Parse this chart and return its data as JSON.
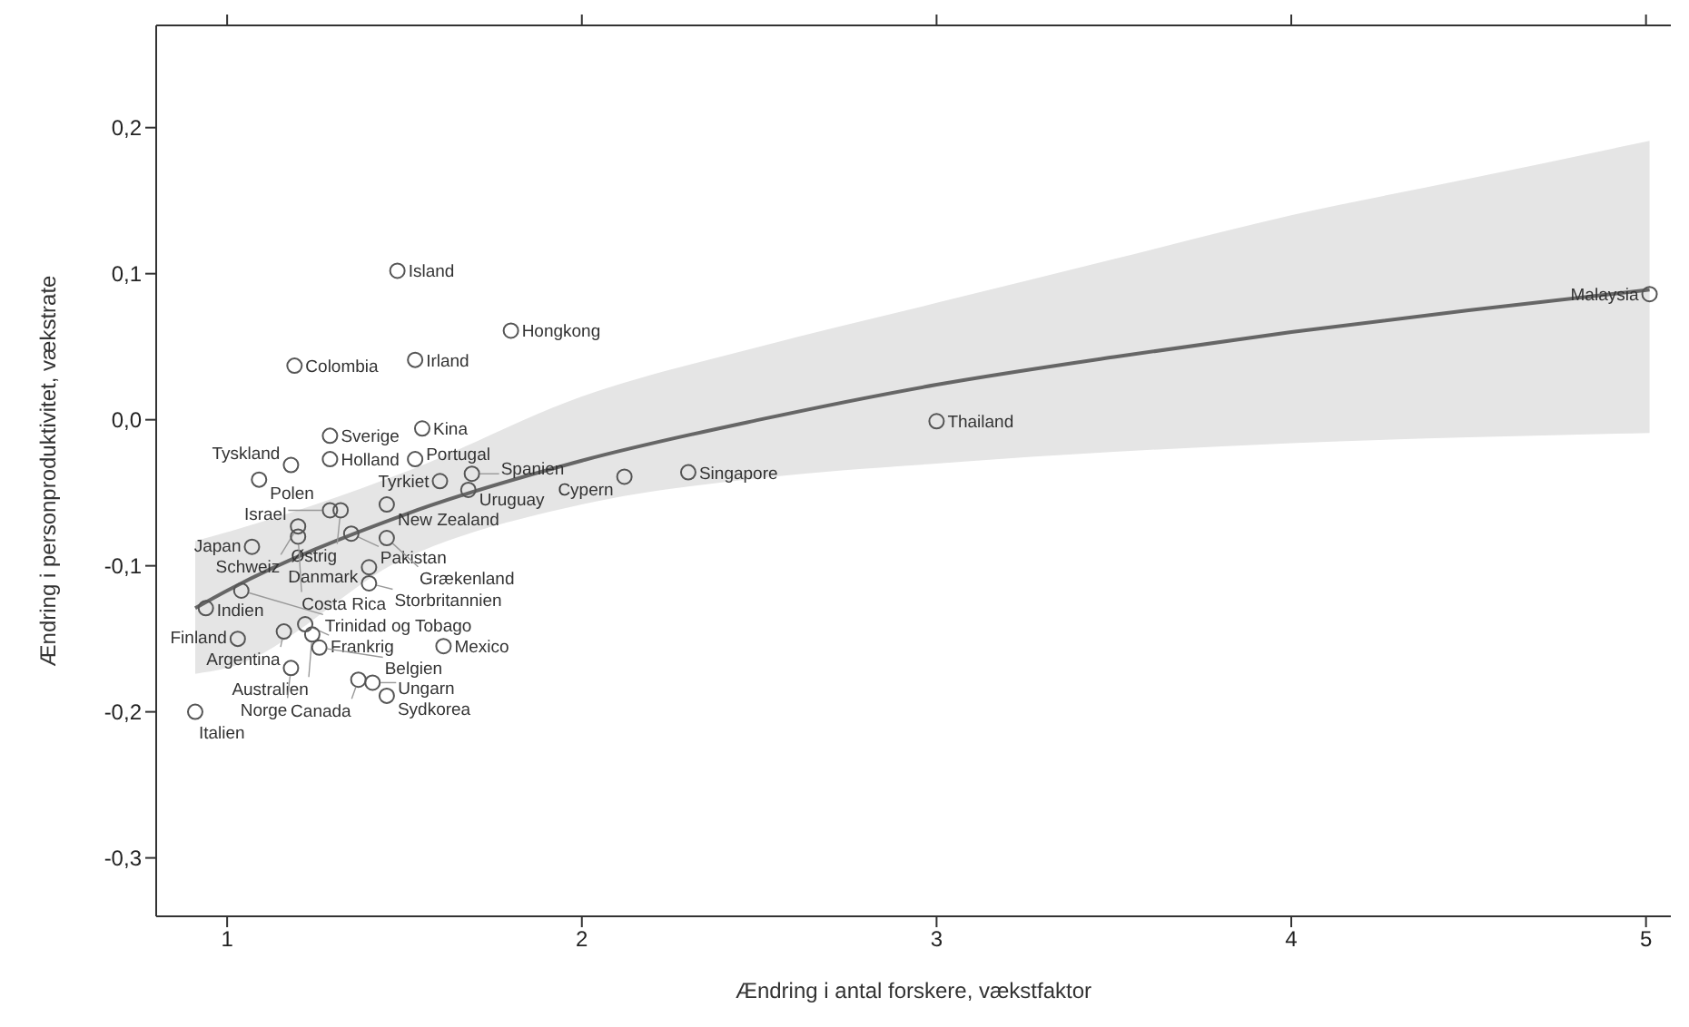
{
  "chart_data": {
    "type": "scatter",
    "xlabel": "Ændring i antal forskere, vækstfaktor",
    "ylabel": "Ændring i personproduktivitet, vækstrate",
    "xlim": [
      0.8,
      5.07
    ],
    "ylim": [
      -0.34,
      0.27
    ],
    "xticks": [
      1,
      2,
      3,
      4,
      5
    ],
    "yticks": [
      {
        "value": -0.3,
        "label": "-0,3"
      },
      {
        "value": -0.2,
        "label": "-0,2"
      },
      {
        "value": -0.1,
        "label": "-0,1"
      },
      {
        "value": 0,
        "label": "0,0"
      },
      {
        "value": 0.1,
        "label": "0,1"
      },
      {
        "value": 0.2,
        "label": "0,2"
      }
    ],
    "grid": false,
    "legend": false,
    "marker": "circle",
    "series": [
      {
        "type": "line",
        "marker": "none",
        "color": "#666666",
        "x": [
          0.91,
          1,
          1.5,
          2,
          2.5,
          3,
          3.5,
          4,
          4.5,
          5.01
        ],
        "values": [
          -0.129,
          -0.117,
          -0.065,
          -0.028,
          0,
          0.024,
          0.043,
          0.06,
          0.075,
          0.089
        ],
        "lower": [
          -0.174,
          -0.17,
          -0.095,
          -0.058,
          -0.04,
          -0.03,
          -0.022,
          -0.016,
          -0.012,
          -0.009
        ],
        "upper": [
          -0.083,
          -0.077,
          -0.036,
          0.016,
          0.05,
          0.08,
          0.11,
          0.14,
          0.165,
          0.191
        ]
      },
      {
        "color": "#555555",
        "x": [
          1.48,
          1.8,
          1.19,
          1.53,
          1.29,
          1.55,
          1.29,
          1.53,
          1.18,
          1.09,
          1.6,
          1.69,
          1.68,
          2.12,
          2.3,
          3.0,
          5.01,
          1.45,
          1.29,
          1.32,
          1.2,
          1.2,
          1.35,
          1.45,
          1.07,
          1.4,
          1.4,
          1.04,
          0.94,
          1.22,
          1.16,
          1.24,
          1.03,
          1.26,
          1.61,
          1.18,
          1.37,
          1.41,
          1.45,
          0.91
        ],
        "values": [
          0.102,
          0.061,
          0.037,
          0.041,
          -0.011,
          -0.006,
          -0.027,
          -0.027,
          -0.031,
          -0.041,
          -0.042,
          -0.037,
          -0.048,
          -0.039,
          -0.036,
          -0.001,
          0.086,
          -0.058,
          -0.062,
          -0.062,
          -0.073,
          -0.08,
          -0.078,
          -0.081,
          -0.087,
          -0.101,
          -0.112,
          -0.117,
          -0.129,
          -0.14,
          -0.145,
          -0.147,
          -0.15,
          -0.156,
          -0.155,
          -0.17,
          -0.178,
          -0.18,
          -0.189,
          -0.2
        ],
        "value_labels": [
          "Island",
          "Hongkong",
          "Colombia",
          "Irland",
          "Sverige",
          "Kina",
          "Holland",
          "Portugal",
          "Tyskland",
          "Polen",
          "Tyrkiet",
          "Spanien",
          "Uruguay",
          "Cypern",
          "Singapore",
          "Thailand",
          "Malaysia",
          "New Zealand",
          "Israel",
          "Østrig",
          "Schweiz",
          "Costa Rica",
          "Pakistan",
          "Grækenland",
          "Japan",
          "Danmark",
          "Storbritannien",
          "Trinidad og Tobago",
          "Indien",
          "Frankrig",
          "Argentina",
          "Australien",
          "Finland",
          "Belgien",
          "Mexico",
          "Norge",
          "Canada",
          "Ungarn",
          "Sydkorea",
          "Italien"
        ]
      }
    ]
  }
}
